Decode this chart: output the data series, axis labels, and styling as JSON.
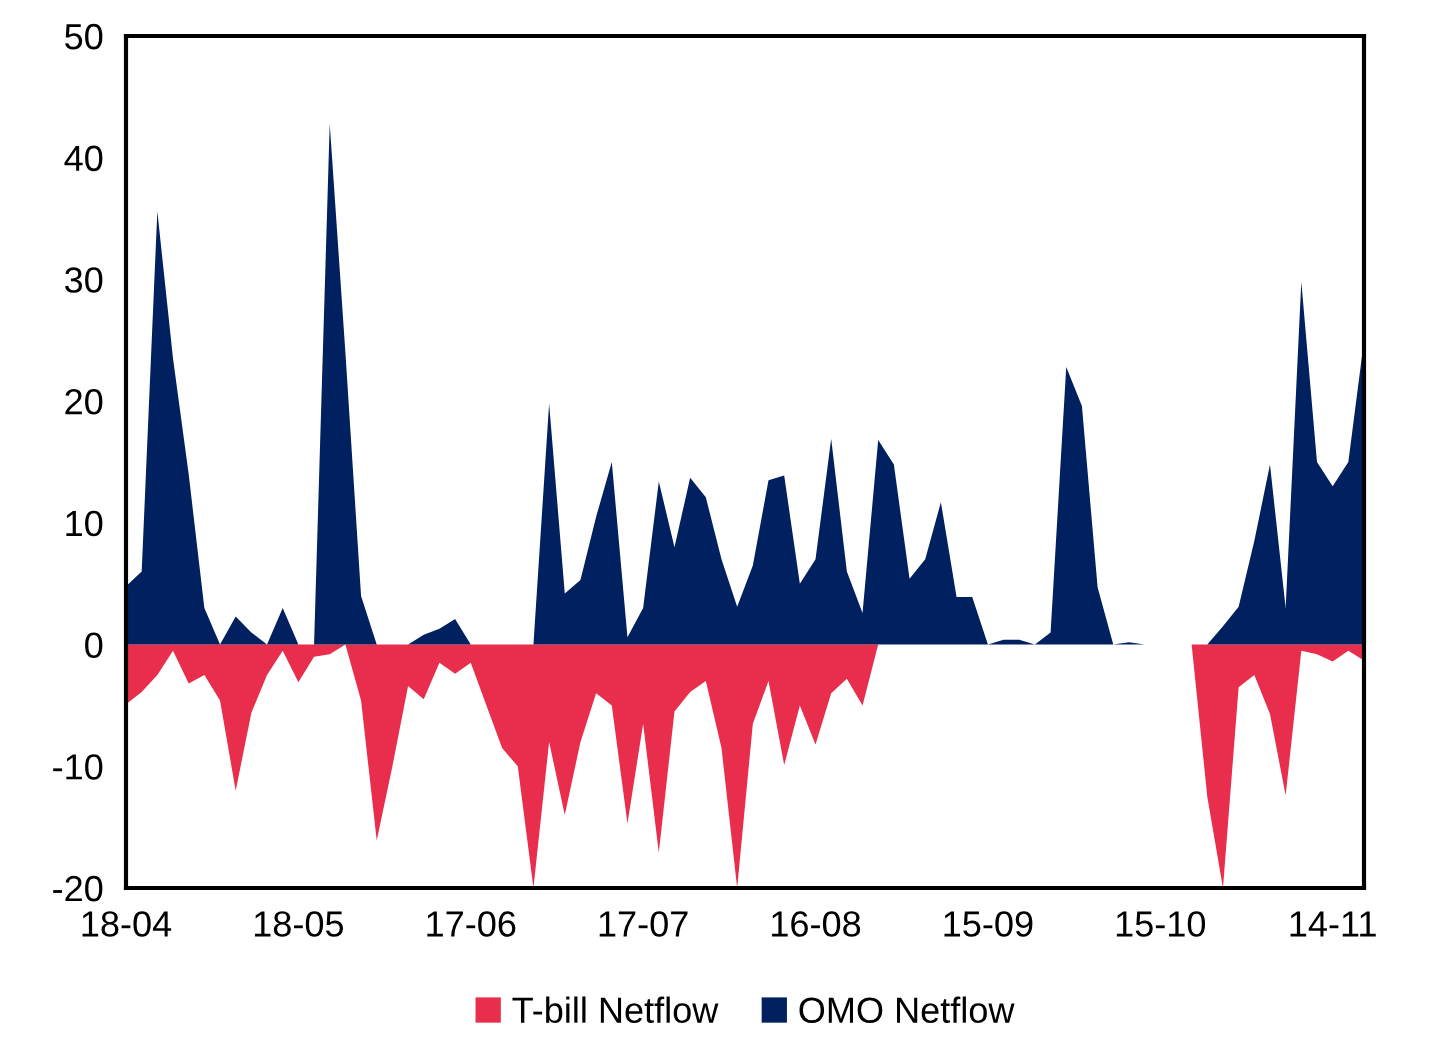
{
  "chart_data": {
    "type": "area",
    "categories": [
      "18-04",
      null,
      null,
      null,
      null,
      null,
      null,
      null,
      null,
      null,
      null,
      "18-05",
      null,
      null,
      null,
      null,
      null,
      null,
      null,
      null,
      null,
      null,
      "17-06",
      null,
      null,
      null,
      null,
      null,
      null,
      null,
      null,
      null,
      null,
      "17-07",
      null,
      null,
      null,
      null,
      null,
      null,
      null,
      null,
      null,
      null,
      "16-08",
      null,
      null,
      null,
      null,
      null,
      null,
      null,
      null,
      null,
      null,
      "15-09",
      null,
      null,
      null,
      null,
      null,
      null,
      null,
      null,
      null,
      null,
      "15-10",
      null,
      null,
      null,
      null,
      null,
      null,
      null,
      null,
      null,
      null,
      "14-11",
      null,
      null
    ],
    "series": [
      {
        "name": "T-bill Netflow",
        "color": "#e92d4c",
        "values": [
          -4.9,
          -3.9,
          -2.5,
          -0.5,
          -3.2,
          -2.5,
          -4.6,
          -12,
          -5.6,
          -2.5,
          -0.5,
          -3.1,
          -1,
          -0.8,
          0,
          -4.6,
          -16.1,
          -10,
          -3.4,
          -4.5,
          -1.5,
          -2.4,
          -1.5,
          -5,
          -8.5,
          -10,
          -20,
          -8,
          -14,
          -8,
          -4,
          -5,
          -14.7,
          -6.5,
          -17.1,
          -5.5,
          -3.9,
          -3,
          -8.5,
          -20,
          -6.5,
          -3,
          -9.9,
          -5,
          -8.2,
          -4,
          -2.8,
          -5,
          0,
          0,
          0,
          0,
          0,
          0,
          0,
          0,
          0,
          0,
          0,
          0,
          0,
          0,
          0,
          0,
          0,
          0,
          0,
          0,
          0,
          -12.5,
          -20,
          -3.5,
          -2.5,
          -5.7,
          -12.4,
          -0.5,
          -0.8,
          -1.4,
          -0.5,
          -1.3
        ]
      },
      {
        "name": "OMO Netflow",
        "color": "#002060",
        "values": [
          4.8,
          6,
          35.6,
          23.5,
          14,
          3,
          0,
          2.3,
          1,
          0,
          3,
          0,
          0,
          42.8,
          24,
          4,
          0,
          0,
          0,
          0.8,
          1.3,
          2.1,
          0,
          0,
          0,
          0,
          0,
          19.8,
          4.2,
          5.3,
          10.5,
          15,
          0.6,
          3,
          13.4,
          8,
          13.7,
          12.1,
          7,
          3.1,
          6.5,
          13.5,
          13.9,
          5,
          7,
          16.9,
          6,
          2.6,
          16.8,
          14.8,
          5.4,
          7,
          11.7,
          3.9,
          3.9,
          0,
          0.4,
          0.4,
          0,
          1,
          22.8,
          19.6,
          4.7,
          0,
          0.2,
          0,
          0,
          0,
          0,
          0,
          1.5,
          3.1,
          8.5,
          14.8,
          3,
          29.8,
          15,
          13,
          15,
          25
        ]
      }
    ],
    "ylim": [
      -20,
      50
    ],
    "yticks": [
      -20,
      -10,
      0,
      10,
      20,
      30,
      40,
      50
    ],
    "legend": "bottom"
  }
}
